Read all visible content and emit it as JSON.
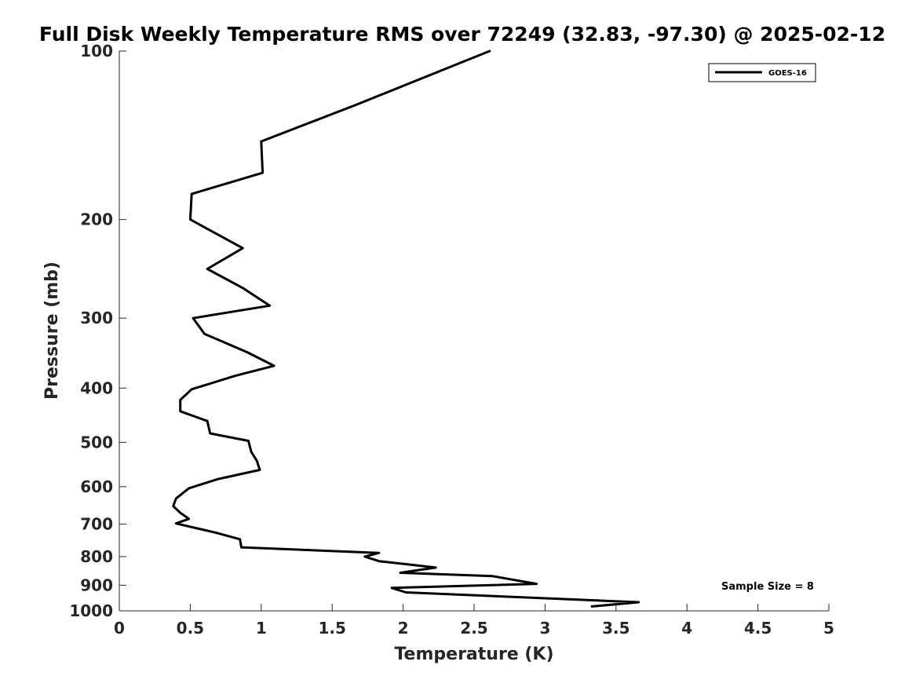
{
  "chart_data": {
    "type": "line",
    "title": "Full Disk Weekly Temperature RMS over 72249 (32.83, -97.30) @ 2025-02-12",
    "xlabel": "Temperature (K)",
    "ylabel": "Pressure (mb)",
    "xlim": [
      0,
      5
    ],
    "ylim": [
      100,
      1000
    ],
    "yscale": "log",
    "y_reversed": true,
    "x_ticks": [
      "0",
      "0.5",
      "1",
      "1.5",
      "2",
      "2.5",
      "3",
      "3.5",
      "4",
      "4.5",
      "5"
    ],
    "y_ticks": [
      "100",
      "200",
      "300",
      "400",
      "500",
      "600",
      "700",
      "800",
      "900",
      "1000"
    ],
    "grid": false,
    "legend": {
      "position": "top-right",
      "entries": [
        "GOES-16"
      ]
    },
    "annotation": "Sample Size = 8",
    "series": [
      {
        "name": "GOES-16",
        "color": "#000000",
        "points": [
          [
            2.61,
            100
          ],
          [
            1.66,
            125
          ],
          [
            1.0,
            145
          ],
          [
            1.01,
            165
          ],
          [
            0.51,
            180
          ],
          [
            0.5,
            200
          ],
          [
            0.87,
            225
          ],
          [
            0.62,
            245
          ],
          [
            0.87,
            265
          ],
          [
            1.06,
            285
          ],
          [
            0.52,
            300
          ],
          [
            0.6,
            320
          ],
          [
            0.9,
            345
          ],
          [
            1.09,
            365
          ],
          [
            0.82,
            380
          ],
          [
            0.51,
            402
          ],
          [
            0.43,
            420
          ],
          [
            0.43,
            440
          ],
          [
            0.62,
            458
          ],
          [
            0.64,
            482
          ],
          [
            0.91,
            497
          ],
          [
            0.93,
            520
          ],
          [
            0.97,
            540
          ],
          [
            0.99,
            560
          ],
          [
            0.69,
            582
          ],
          [
            0.49,
            604
          ],
          [
            0.4,
            630
          ],
          [
            0.38,
            650
          ],
          [
            0.43,
            668
          ],
          [
            0.49,
            685
          ],
          [
            0.4,
            698
          ],
          [
            0.68,
            725
          ],
          [
            0.85,
            745
          ],
          [
            0.86,
            770
          ],
          [
            1.83,
            788
          ],
          [
            1.73,
            800
          ],
          [
            1.83,
            815
          ],
          [
            2.23,
            837
          ],
          [
            1.98,
            855
          ],
          [
            2.63,
            867
          ],
          [
            2.94,
            895
          ],
          [
            1.92,
            910
          ],
          [
            2.02,
            927
          ],
          [
            3.66,
            965
          ],
          [
            3.33,
            982
          ]
        ]
      }
    ]
  }
}
